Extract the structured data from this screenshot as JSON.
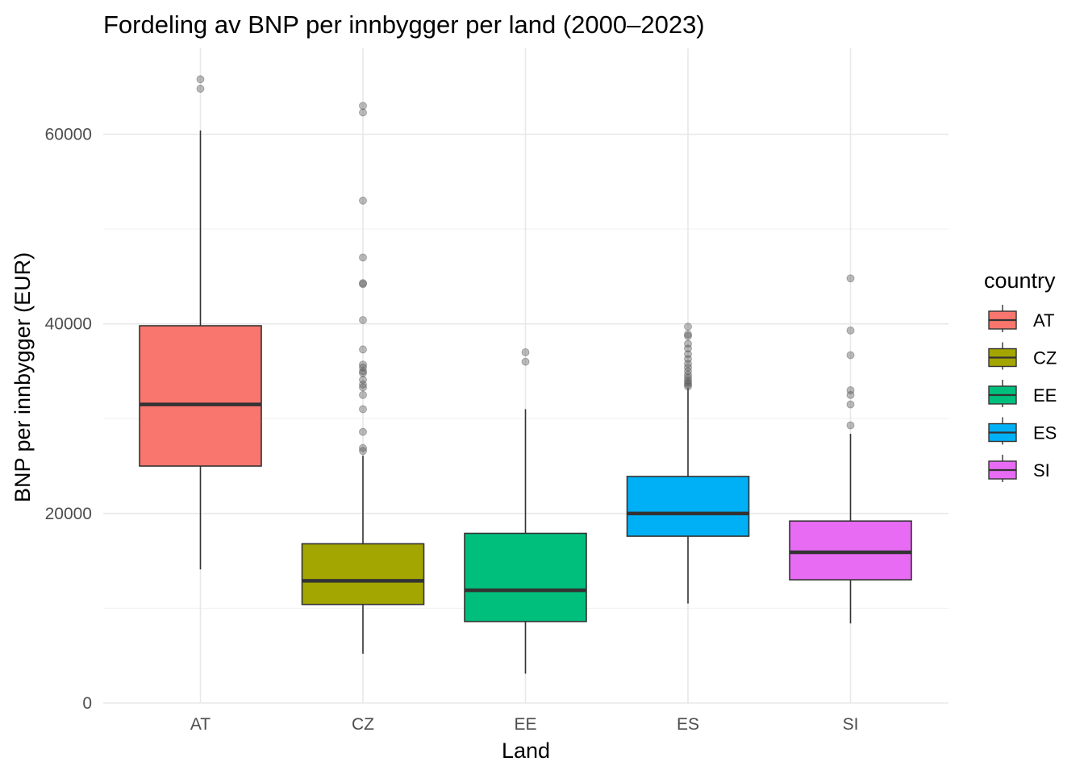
{
  "chart_data": {
    "type": "boxplot",
    "title": "Fordeling av BNP per innbygger per land (2000–2023)",
    "xlabel": "Land",
    "ylabel": "BNP per innbygger (EUR)",
    "ylim": [
      0,
      68000
    ],
    "yticks": [
      0,
      20000,
      40000,
      60000
    ],
    "ytick_labels": [
      "0",
      "20000",
      "40000",
      "60000"
    ],
    "grid": true,
    "legend": {
      "title": "country",
      "position": "right"
    },
    "categories": [
      "AT",
      "CZ",
      "EE",
      "ES",
      "SI"
    ],
    "series": [
      {
        "name": "AT",
        "color": "#F8766D",
        "whisker_low": 14100,
        "q1": 25000,
        "median": 31500,
        "q3": 39800,
        "whisker_high": 60400,
        "outliers": [
          64800,
          65800
        ]
      },
      {
        "name": "CZ",
        "color": "#A3A500",
        "whisker_low": 5200,
        "q1": 10400,
        "median": 12900,
        "q3": 16800,
        "whisker_high": 26100,
        "outliers": [
          26600,
          26900,
          28600,
          31000,
          32500,
          33300,
          33600,
          34100,
          34800,
          35000,
          35400,
          35700,
          37300,
          40400,
          44200,
          44300,
          47000,
          53000,
          62300,
          63000
        ]
      },
      {
        "name": "EE",
        "color": "#00BF7D",
        "whisker_low": 3100,
        "q1": 8600,
        "median": 11900,
        "q3": 17900,
        "whisker_high": 31000,
        "outliers": [
          36000,
          37000
        ]
      },
      {
        "name": "ES",
        "color": "#00B0F6",
        "whisker_low": 10500,
        "q1": 17600,
        "median": 20000,
        "q3": 23900,
        "whisker_high": 33200,
        "outliers": [
          33400,
          33600,
          33800,
          34000,
          34300,
          34600,
          35000,
          35400,
          35800,
          36300,
          36800,
          37400,
          37900,
          38700,
          38900,
          39700
        ]
      },
      {
        "name": "SI",
        "color": "#E76BF3",
        "whisker_low": 8400,
        "q1": 13000,
        "median": 15900,
        "q3": 19200,
        "whisker_high": 28400,
        "outliers": [
          29300,
          31500,
          32500,
          33000,
          36700,
          39300,
          44800
        ]
      }
    ]
  }
}
